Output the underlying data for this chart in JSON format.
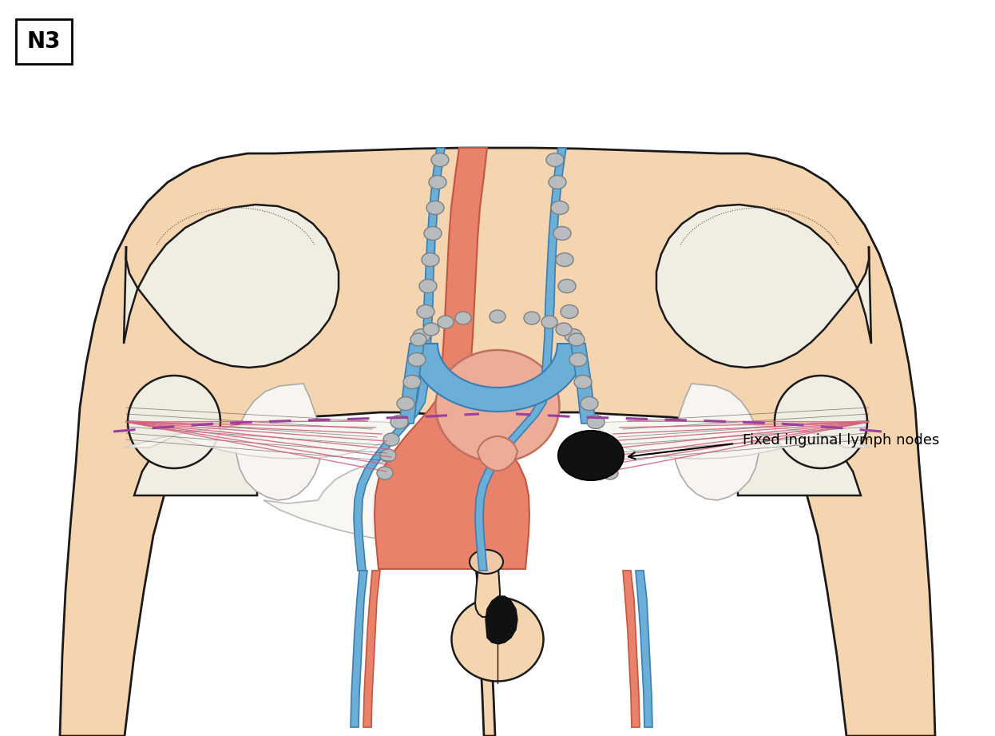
{
  "title": "N3",
  "label_text": "Fixed inguinal lymph nodes",
  "bg_color": "#FFFFFF",
  "skin_color": "#F5D4B0",
  "skin_outline": "#1a1a1a",
  "bone_color": "#EDE8DE",
  "bone_fill": "#F0EDE2",
  "blue_vessel": "#6BAED6",
  "blue_dark": "#3A7DB5",
  "red_vessel": "#E8826A",
  "red_dark": "#C45540",
  "lymph_gray": "#B8BCBE",
  "lymph_outline": "#7a8080",
  "black_node": "#111111",
  "muscle_pink": "#D4607A",
  "dashed_purple": "#9B3F9E",
  "white_tissue": "#F8F5F0",
  "figsize": [
    12.46,
    9.21
  ],
  "dpi": 100
}
